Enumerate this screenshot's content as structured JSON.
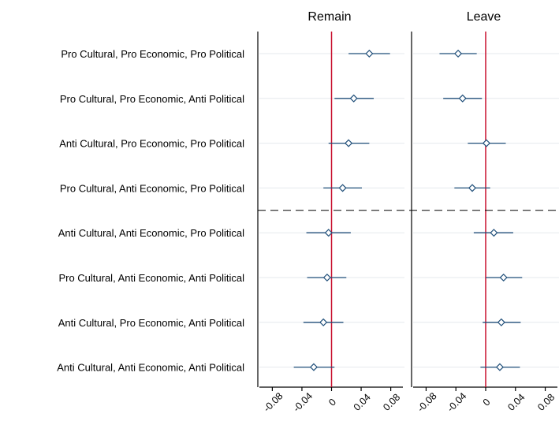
{
  "chart_data": {
    "type": "scatter",
    "panels": [
      "Remain",
      "Leave"
    ],
    "categories": [
      "Pro Cultural, Pro Economic, Pro Political",
      "Pro Cultural, Pro Economic, Anti Political",
      "Anti Cultural, Pro Economic, Pro Political",
      "Pro Cultural, Anti Economic, Pro Political",
      "Anti Cultural, Anti Economic, Pro Political",
      "Pro Cultural, Anti Economic, Anti Political",
      "Anti Cultural, Pro Economic, Anti Political",
      "Anti Cultural, Anti Economic, Anti Political"
    ],
    "series": [
      {
        "panel": "Remain",
        "estimates": [
          0.051,
          0.03,
          0.023,
          0.015,
          -0.004,
          -0.006,
          -0.011,
          -0.024
        ],
        "ci_low": [
          0.023,
          0.004,
          -0.004,
          -0.011,
          -0.034,
          -0.033,
          -0.038,
          -0.051
        ],
        "ci_high": [
          0.079,
          0.057,
          0.051,
          0.041,
          0.026,
          0.02,
          0.016,
          0.004
        ]
      },
      {
        "panel": "Leave",
        "estimates": [
          -0.037,
          -0.031,
          0.001,
          -0.018,
          0.011,
          0.024,
          0.021,
          0.019
        ],
        "ci_low": [
          -0.062,
          -0.057,
          -0.024,
          -0.042,
          -0.016,
          0.0,
          -0.004,
          -0.007
        ],
        "ci_high": [
          -0.012,
          -0.005,
          0.027,
          0.006,
          0.037,
          0.049,
          0.047,
          0.046
        ]
      }
    ],
    "xlim": [
      -0.09,
      0.09
    ],
    "xticks": [
      -0.08,
      -0.04,
      0,
      0.04,
      0.08
    ],
    "xtick_labels": [
      "-0.08",
      "-0.04",
      "0",
      "0.04",
      "0.08"
    ],
    "reference_line": 0,
    "separator_after_index": 3,
    "grid": true,
    "colors": {
      "point": "#1f4e79",
      "ci": "#1f4e79",
      "zero_line": "#c8102e",
      "grid": "#e6e9ee",
      "separator": "#000000"
    }
  }
}
